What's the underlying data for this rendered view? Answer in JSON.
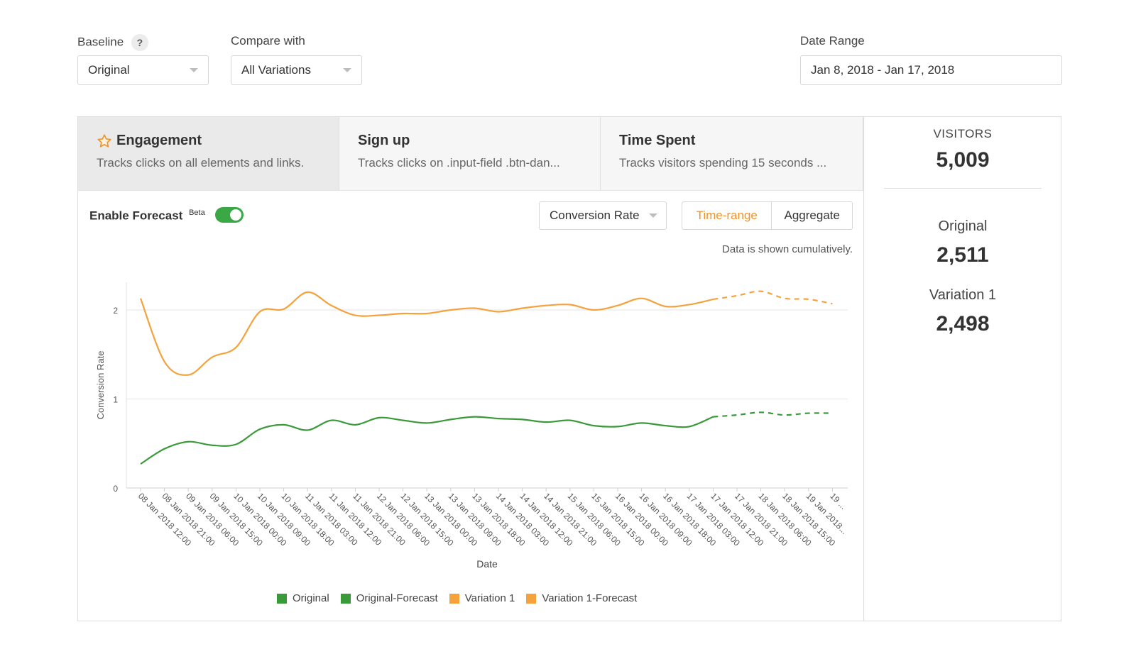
{
  "controls": {
    "baseline_label": "Baseline",
    "baseline_help": "?",
    "baseline_value": "Original",
    "compare_label": "Compare with",
    "compare_value": "All Variations",
    "date_label": "Date Range",
    "date_value": "Jan 8, 2018 - Jan 17, 2018"
  },
  "tabs": [
    {
      "title": "Engagement",
      "desc": "Tracks clicks on all elements and links.",
      "icon": "star-icon",
      "active": true
    },
    {
      "title": "Sign up",
      "desc": "Tracks clicks on .input-field .btn-dan...",
      "active": false
    },
    {
      "title": "Time Spent",
      "desc": "Tracks visitors spending 15 seconds ...",
      "active": false
    }
  ],
  "forecast": {
    "label": "Enable Forecast",
    "badge": "Beta",
    "enabled": true
  },
  "metric_select": "Conversion Rate",
  "view_toggle": {
    "time_range": "Time-range",
    "aggregate": "Aggregate",
    "selected": "Time-range"
  },
  "note": "Data is shown cumulatively.",
  "sidebar": {
    "visitors_label": "VISITORS",
    "visitors_value": "5,009",
    "variants": [
      {
        "name": "Original",
        "value": "2,511"
      },
      {
        "name": "Variation 1",
        "value": "2,498"
      }
    ]
  },
  "colors": {
    "original": "#3a9a3a",
    "variation": "#f5a23c",
    "accent": "#f0932b"
  },
  "chart_data": {
    "type": "line",
    "xlabel": "Date",
    "ylabel": "Conversion Rate",
    "ylim": [
      0,
      2.3
    ],
    "yticks": [
      0,
      1,
      2
    ],
    "categories": [
      "08 Jan 2018 12:00",
      "08 Jan 2018 21:00",
      "09 Jan 2018 06:00",
      "09 Jan 2018 15:00",
      "10 Jan 2018 00:00",
      "10 Jan 2018 09:00",
      "10 Jan 2018 18:00",
      "11 Jan 2018 03:00",
      "11 Jan 2018 12:00",
      "11 Jan 2018 21:00",
      "12 Jan 2018 06:00",
      "12 Jan 2018 15:00",
      "13 Jan 2018 00:00",
      "13 Jan 2018 09:00",
      "13 Jan 2018 18:00",
      "14 Jan 2018 03:00",
      "14 Jan 2018 12:00",
      "14 Jan 2018 21:00",
      "15 Jan 2018 06:00",
      "15 Jan 2018 15:00",
      "16 Jan 2018 00:00",
      "16 Jan 2018 09:00",
      "16 Jan 2018 18:00",
      "17 Jan 2018 03:00",
      "17 Jan 2018 12:00",
      "17 Jan 2018 21:00",
      "18 Jan 2018 06:00",
      "18 Jan 2018 15:00",
      "19 Jan 2018...",
      "19 ..."
    ],
    "series": [
      {
        "name": "Original",
        "x": [
          "08 Jan 2018 12:00",
          "08 Jan 2018 21:00",
          "09 Jan 2018 06:00",
          "09 Jan 2018 15:00",
          "10 Jan 2018 00:00",
          "10 Jan 2018 09:00",
          "10 Jan 2018 18:00",
          "11 Jan 2018 03:00",
          "11 Jan 2018 12:00",
          "11 Jan 2018 21:00",
          "12 Jan 2018 06:00",
          "12 Jan 2018 15:00",
          "13 Jan 2018 00:00",
          "13 Jan 2018 09:00",
          "13 Jan 2018 18:00",
          "14 Jan 2018 03:00",
          "14 Jan 2018 12:00",
          "14 Jan 2018 21:00",
          "15 Jan 2018 06:00",
          "15 Jan 2018 15:00",
          "16 Jan 2018 00:00",
          "16 Jan 2018 09:00",
          "16 Jan 2018 18:00",
          "17 Jan 2018 03:00",
          "17 Jan 2018 12:00"
        ],
        "values": [
          0.27,
          0.44,
          0.52,
          0.48,
          0.49,
          0.66,
          0.71,
          0.65,
          0.76,
          0.71,
          0.79,
          0.76,
          0.73,
          0.77,
          0.8,
          0.78,
          0.77,
          0.74,
          0.76,
          0.7,
          0.69,
          0.73,
          0.7,
          0.69,
          0.8
        ]
      },
      {
        "name": "Original-Forecast",
        "x": [
          "17 Jan 2018 12:00",
          "17 Jan 2018 21:00",
          "18 Jan 2018 06:00",
          "18 Jan 2018 15:00",
          "19 Jan 2018...",
          "19 ..."
        ],
        "values": [
          0.8,
          0.82,
          0.85,
          0.82,
          0.84,
          0.84
        ]
      },
      {
        "name": "Variation 1",
        "x": [
          "08 Jan 2018 12:00",
          "08 Jan 2018 21:00",
          "09 Jan 2018 06:00",
          "09 Jan 2018 15:00",
          "10 Jan 2018 00:00",
          "10 Jan 2018 09:00",
          "10 Jan 2018 18:00",
          "11 Jan 2018 03:00",
          "11 Jan 2018 12:00",
          "11 Jan 2018 21:00",
          "12 Jan 2018 06:00",
          "12 Jan 2018 15:00",
          "13 Jan 2018 00:00",
          "13 Jan 2018 09:00",
          "13 Jan 2018 18:00",
          "14 Jan 2018 03:00",
          "14 Jan 2018 12:00",
          "14 Jan 2018 21:00",
          "15 Jan 2018 06:00",
          "15 Jan 2018 15:00",
          "16 Jan 2018 00:00",
          "16 Jan 2018 09:00",
          "16 Jan 2018 18:00",
          "17 Jan 2018 03:00",
          "17 Jan 2018 12:00"
        ],
        "values": [
          2.13,
          1.42,
          1.27,
          1.47,
          1.58,
          1.98,
          2.01,
          2.2,
          2.05,
          1.94,
          1.94,
          1.96,
          1.96,
          2.0,
          2.02,
          1.98,
          2.02,
          2.05,
          2.06,
          2.0,
          2.05,
          2.13,
          2.04,
          2.06,
          2.12
        ]
      },
      {
        "name": "Variation 1-Forecast",
        "x": [
          "17 Jan 2018 12:00",
          "17 Jan 2018 21:00",
          "18 Jan 2018 06:00",
          "18 Jan 2018 15:00",
          "19 Jan 2018...",
          "19 ..."
        ],
        "values": [
          2.12,
          2.16,
          2.21,
          2.13,
          2.12,
          2.07
        ]
      }
    ]
  }
}
